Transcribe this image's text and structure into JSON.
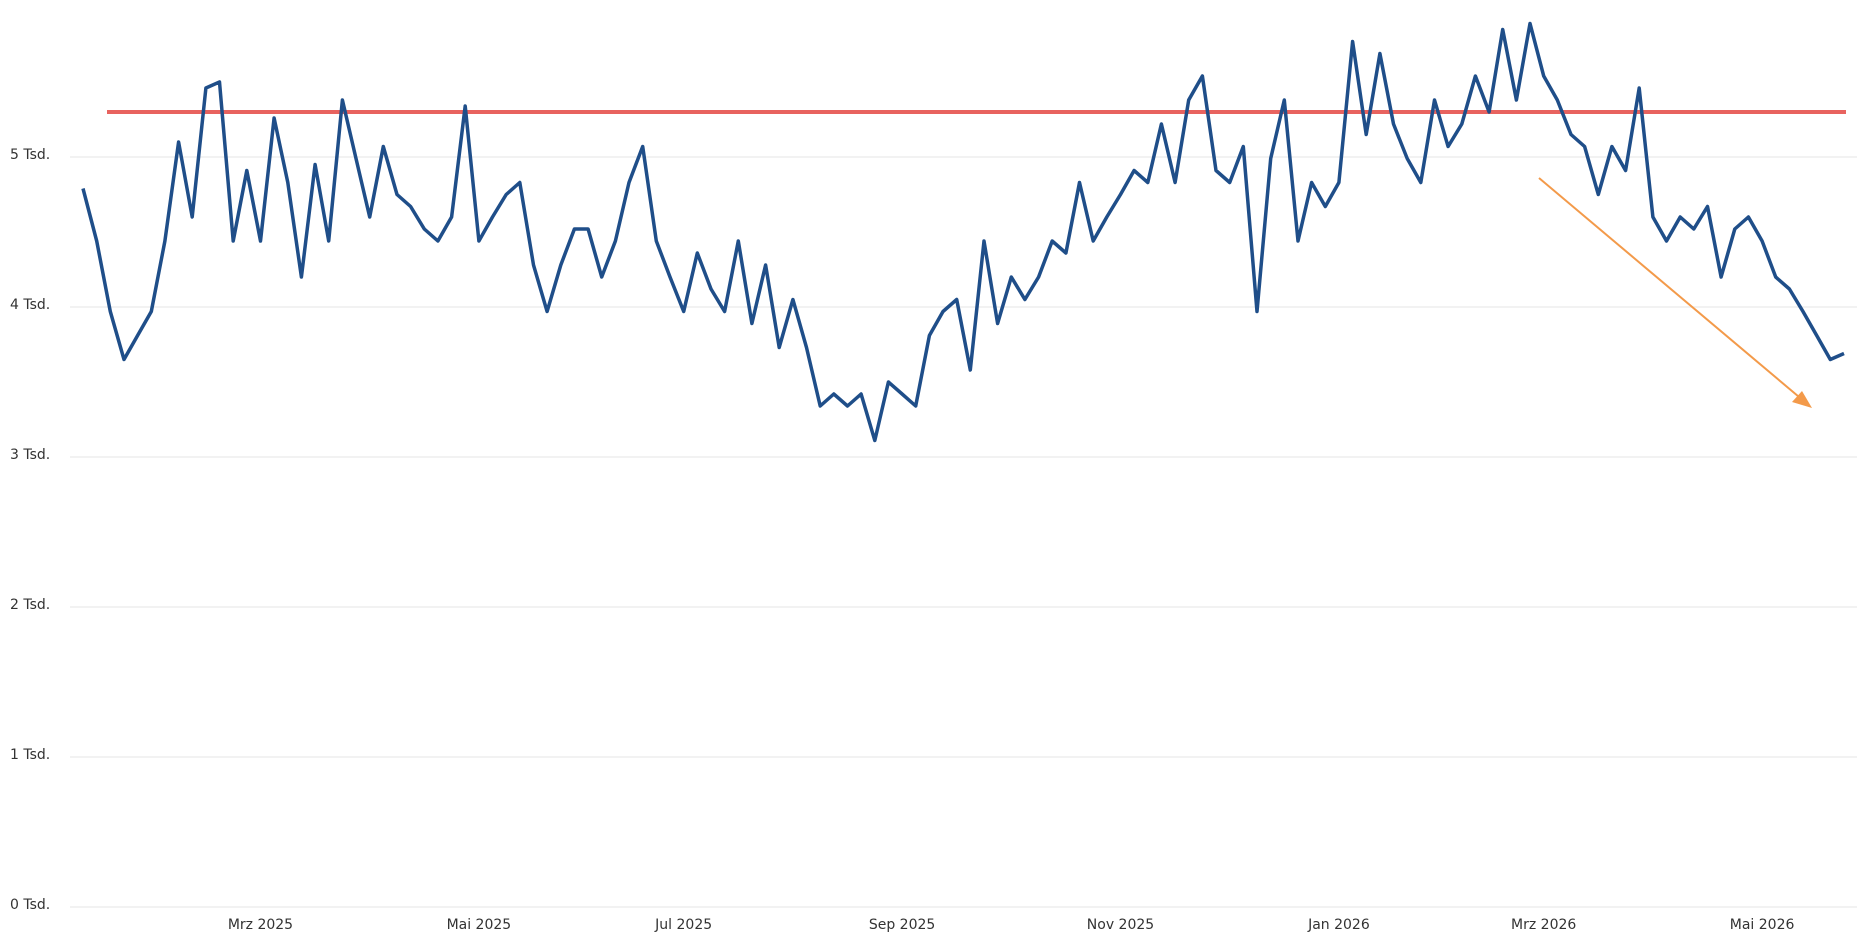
{
  "chart_data": {
    "type": "line",
    "categories": [
      null,
      null,
      null,
      null,
      null,
      null,
      null,
      null,
      null,
      null,
      null,
      null,
      null,
      "Mrz 2025",
      null,
      null,
      null,
      null,
      null,
      null,
      null,
      null,
      null,
      null,
      null,
      null,
      null,
      null,
      null,
      "Mai 2025",
      null,
      null,
      null,
      null,
      null,
      null,
      null,
      null,
      null,
      null,
      null,
      null,
      null,
      null,
      "Jul 2025",
      null,
      null,
      null,
      null,
      null,
      null,
      null,
      null,
      null,
      null,
      null,
      null,
      null,
      null,
      null,
      "Sep 2025",
      null,
      null,
      null,
      null,
      null,
      null,
      null,
      null,
      null,
      null,
      null,
      null,
      null,
      null,
      null,
      "Nov 2025",
      null,
      null,
      null,
      null,
      null,
      null,
      null,
      null,
      null,
      null,
      null,
      null,
      null,
      null,
      null,
      "Jan 2026",
      null,
      null,
      null,
      null,
      null,
      null,
      null,
      null,
      null,
      null,
      null,
      null,
      null,
      null,
      "Mrz 2026",
      null,
      null,
      null,
      null,
      null,
      null,
      null,
      null,
      null,
      null,
      null,
      null,
      null,
      null,
      null,
      "Mai 2026",
      null,
      null,
      null,
      null,
      null,
      null
    ],
    "series": [
      {
        "color": "#1f4e89",
        "values": [
          4790,
          4440,
          3970,
          3650,
          3810,
          3970,
          4440,
          5100,
          4600,
          5460,
          5500,
          4440,
          4910,
          4440,
          5260,
          4830,
          4200,
          4950,
          4440,
          5380,
          4990,
          4600,
          5070,
          4750,
          4670,
          4520,
          4440,
          4600,
          5340,
          4440,
          4600,
          4750,
          4830,
          4280,
          3970,
          4280,
          4520,
          4520,
          4200,
          4440,
          4830,
          5070,
          4440,
          4200,
          3970,
          4360,
          4120,
          3970,
          4440,
          3890,
          4280,
          3730,
          4050,
          3730,
          3340,
          3420,
          3340,
          3420,
          3110,
          3500,
          3420,
          3340,
          3810,
          3970,
          4050,
          3580,
          4440,
          3890,
          4200,
          4050,
          4200,
          4440,
          4360,
          4830,
          4440,
          4600,
          4750,
          4910,
          4830,
          5220,
          4830,
          5380,
          5540,
          4910,
          4830,
          5070,
          3970,
          4990,
          5380,
          4440,
          4830,
          4670,
          4830,
          5770,
          5150,
          5690,
          5220,
          4990,
          4830,
          5380,
          5070,
          5220,
          5540,
          5300,
          5850,
          5380,
          5890,
          5540,
          5380,
          5150,
          5070,
          4750,
          5070,
          4910,
          5460,
          4600,
          4440,
          4600,
          4520,
          4670,
          4200,
          4520,
          4600,
          4440,
          4200,
          4120,
          3970,
          3810,
          3650,
          3690
        ]
      }
    ],
    "reference_line": {
      "value": 5300,
      "color": "#e8635f"
    },
    "ylim": [
      0,
      6000
    ],
    "yticks": [
      {
        "value": 0,
        "label": "0 Tsd."
      },
      {
        "value": 1000,
        "label": "1 Tsd."
      },
      {
        "value": 2000,
        "label": "2 Tsd."
      },
      {
        "value": 3000,
        "label": "3 Tsd."
      },
      {
        "value": 4000,
        "label": "4 Tsd."
      },
      {
        "value": 5000,
        "label": "5 Tsd."
      }
    ],
    "grid": true
  }
}
